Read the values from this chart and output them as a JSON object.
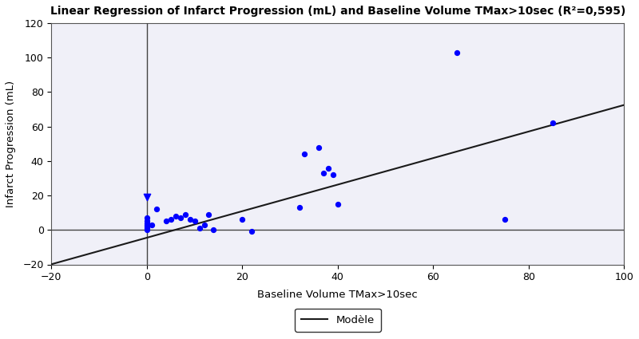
{
  "title": "Linear Regression of Infarct Progression (mL) and Baseline Volume TMax>10sec (R²=0,595)",
  "xlabel": "Baseline Volume TMax>10sec",
  "ylabel": "Infarct Progression (mL)",
  "xlim": [
    -20,
    100
  ],
  "ylim": [
    -20,
    120
  ],
  "xticks": [
    -20,
    0,
    20,
    40,
    60,
    80,
    100
  ],
  "yticks": [
    -20,
    0,
    20,
    40,
    60,
    80,
    100,
    120
  ],
  "scatter_x": [
    0,
    0,
    0,
    0,
    0,
    0,
    0,
    1,
    2,
    4,
    5,
    6,
    7,
    8,
    9,
    10,
    11,
    12,
    13,
    14,
    20,
    22,
    32,
    33,
    36,
    37,
    38,
    39,
    40,
    65,
    75,
    85
  ],
  "scatter_y": [
    7,
    5,
    4,
    3,
    2,
    1,
    0,
    3,
    12,
    5,
    6,
    8,
    7,
    9,
    6,
    5,
    1,
    3,
    9,
    0,
    6,
    -1,
    13,
    44,
    48,
    33,
    36,
    32,
    15,
    103,
    6,
    62
  ],
  "special_x": [
    0
  ],
  "special_y": [
    19
  ],
  "scatter_color": "#0000FF",
  "scatter_size": 18,
  "line_slope": 0.77,
  "line_intercept": -4.5,
  "line_color": "#1a1a1a",
  "line_width": 1.5,
  "legend_label": "Modèle",
  "bg_color": "#ffffff",
  "plot_bg_color": "#f0f0f8",
  "title_fontsize": 10,
  "label_fontsize": 9.5,
  "tick_fontsize": 9
}
